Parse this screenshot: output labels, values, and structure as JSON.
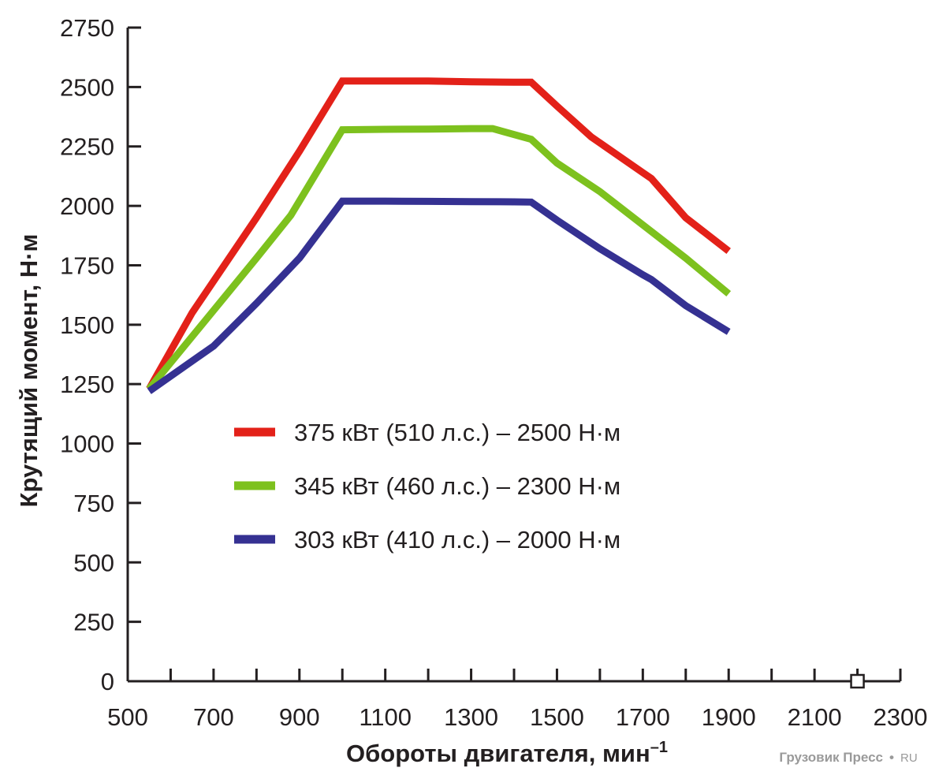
{
  "chart_data": {
    "type": "line",
    "title": "",
    "xlabel": "Обороты двигателя, мин",
    "xlabel_sup": "–1",
    "ylabel": "Крутящий момент, Н·м",
    "xlim": [
      500,
      2300
    ],
    "ylim": [
      0,
      2750
    ],
    "xticks": [
      500,
      700,
      900,
      1100,
      1300,
      1500,
      1700,
      1900,
      2100,
      2300
    ],
    "yticks": [
      0,
      250,
      500,
      750,
      1000,
      1250,
      1500,
      1750,
      2000,
      2250,
      2500,
      2750
    ],
    "legend_position": "center-left",
    "series": [
      {
        "name": "375 кВт (510 л.с.) – 2500 Н·м",
        "color": "#e32119",
        "x": [
          550,
          650,
          800,
          900,
          1000,
          1100,
          1200,
          1300,
          1400,
          1440,
          1500,
          1580,
          1700,
          1720,
          1800,
          1900
        ],
        "y": [
          1230,
          1550,
          1950,
          2230,
          2525,
          2525,
          2525,
          2522,
          2520,
          2520,
          2420,
          2290,
          2140,
          2115,
          1950,
          1810
        ]
      },
      {
        "name": "345 кВт (460 л.с.) – 2300 Н·м",
        "color": "#7dc11e",
        "x": [
          550,
          700,
          800,
          880,
          1000,
          1100,
          1200,
          1300,
          1350,
          1440,
          1500,
          1600,
          1700,
          1800,
          1900
        ],
        "y": [
          1230,
          1560,
          1780,
          1960,
          2320,
          2322,
          2323,
          2325,
          2325,
          2280,
          2180,
          2060,
          1920,
          1780,
          1630
        ]
      },
      {
        "name": "303 кВт (410 л.с.) – 2000 Н·м",
        "color": "#353192",
        "x": [
          550,
          700,
          800,
          900,
          1000,
          1100,
          1200,
          1300,
          1400,
          1440,
          1500,
          1600,
          1700,
          1720,
          1800,
          1900
        ],
        "y": [
          1220,
          1410,
          1590,
          1780,
          2020,
          2020,
          2019,
          2018,
          2017,
          2016,
          1940,
          1820,
          1710,
          1690,
          1580,
          1470
        ]
      }
    ],
    "annotations": [
      {
        "type": "open-square-marker",
        "x": 2200,
        "y": 0
      }
    ]
  },
  "watermark": {
    "brand": "Грузовик Пресс",
    "dot": "•",
    "tld": "RU"
  }
}
